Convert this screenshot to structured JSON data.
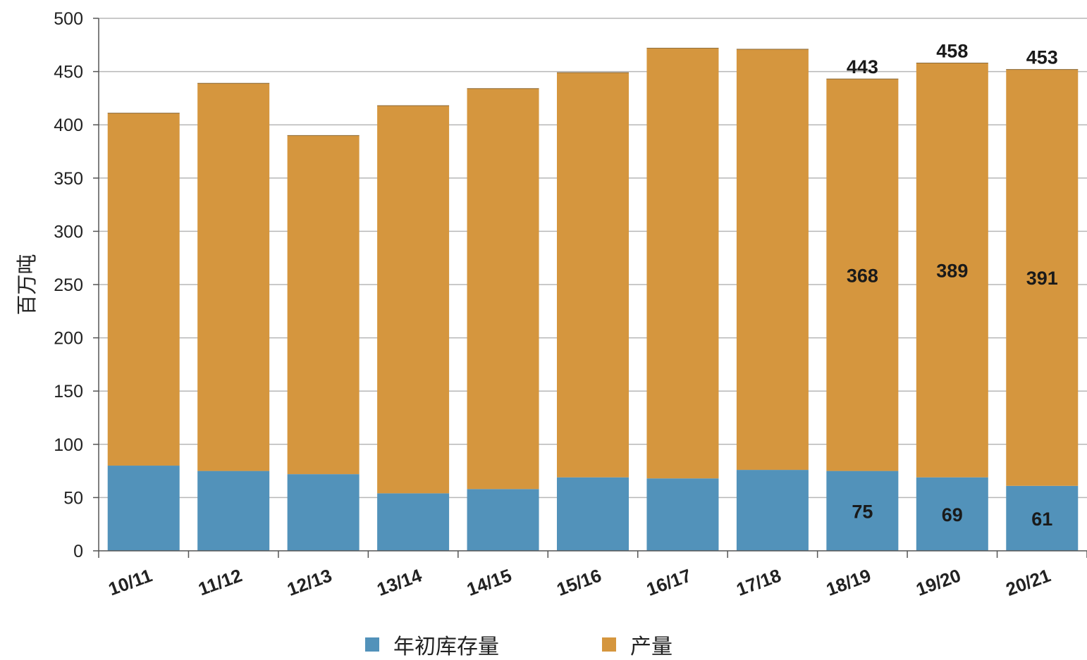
{
  "chart_data": {
    "type": "bar",
    "stacked": true,
    "title": "",
    "xlabel": "",
    "ylabel": "百万吨",
    "ylim": [
      0,
      500
    ],
    "yticks": [
      0,
      50,
      100,
      150,
      200,
      250,
      300,
      350,
      400,
      450,
      500
    ],
    "grid": true,
    "legend_position": "bottom",
    "categories": [
      "10/11",
      "11/12",
      "12/13",
      "13/14",
      "14/15",
      "15/16",
      "16/17",
      "17/18",
      "18/19",
      "19/20",
      "20/21"
    ],
    "series": [
      {
        "name": "年初库存量",
        "color": "#5292BA",
        "values": [
          80,
          75,
          72,
          54,
          58,
          69,
          68,
          76,
          75,
          69,
          61
        ],
        "data_labels": [
          "",
          "",
          "",
          "",
          "",
          "",
          "",
          "",
          "75",
          "69",
          "61"
        ]
      },
      {
        "name": "产量",
        "color": "#D5963E",
        "values": [
          331,
          364,
          318,
          364,
          376,
          380,
          404,
          395,
          368,
          389,
          391
        ],
        "data_labels": [
          "",
          "",
          "",
          "",
          "",
          "",
          "",
          "",
          "368",
          "389",
          "391"
        ]
      }
    ],
    "totals_labels": [
      "",
      "",
      "",
      "",
      "",
      "",
      "",
      "",
      "443",
      "458",
      "453"
    ]
  }
}
